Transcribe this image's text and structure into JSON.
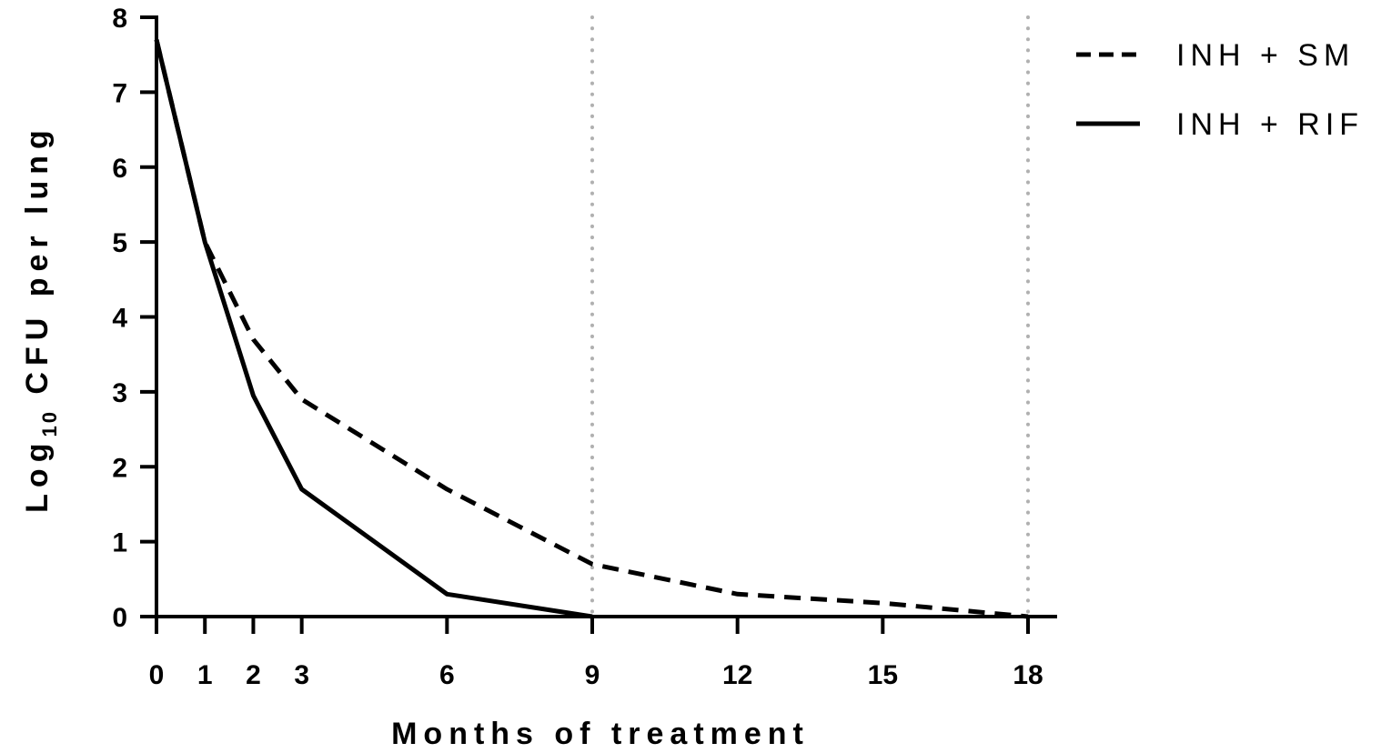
{
  "chart_data": {
    "type": "line",
    "xlabel": "Months of treatment",
    "ylabel_parts": {
      "pre": "Log",
      "sub": "10",
      "post": " CFU per lung"
    },
    "xlim": [
      0,
      18
    ],
    "ylim": [
      0,
      8
    ],
    "x_ticks": [
      0,
      1,
      2,
      3,
      6,
      9,
      12,
      15,
      18
    ],
    "y_ticks": [
      0,
      1,
      2,
      3,
      4,
      5,
      6,
      7,
      8
    ],
    "reference_lines_x": [
      9,
      18
    ],
    "legend_position": "top-right",
    "series": [
      {
        "name": "INH + SM",
        "style": "dashed",
        "x": [
          0,
          1,
          2,
          3,
          6,
          9,
          12,
          15,
          18
        ],
        "y": [
          7.7,
          5.0,
          3.7,
          2.9,
          1.7,
          0.7,
          0.3,
          0.18,
          0.0
        ]
      },
      {
        "name": "INH + RIF",
        "style": "solid",
        "x": [
          0,
          1,
          2,
          3,
          6,
          9
        ],
        "y": [
          7.7,
          5.0,
          2.95,
          1.7,
          0.3,
          0.0
        ]
      }
    ]
  }
}
